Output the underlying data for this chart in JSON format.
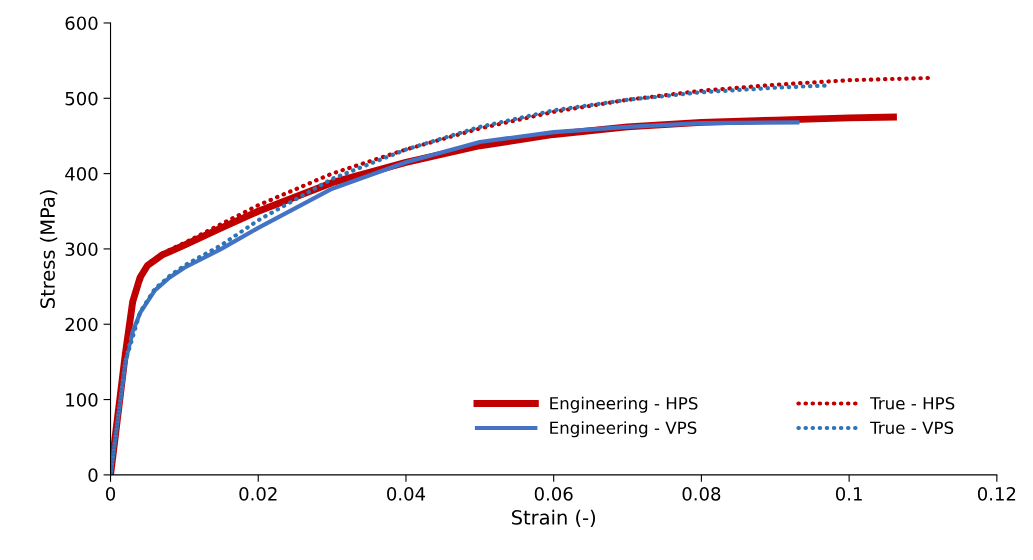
{
  "chart_data": {
    "type": "line",
    "xlabel": "Strain (-)",
    "ylabel": "Stress (MPa)",
    "xlim": [
      0,
      0.12
    ],
    "xticks": [
      0,
      0.02,
      0.04,
      0.06,
      0.08,
      0.1,
      0.12
    ],
    "ylim": [
      0,
      600
    ],
    "yticks": [
      0,
      100,
      200,
      300,
      400,
      500,
      600
    ],
    "grid": false,
    "legend": "bottom right",
    "marker": "none",
    "series": [
      {
        "name": "Engineering - HPS",
        "color": "#c00000",
        "line_style": "solid",
        "x": [
          0,
          0.002,
          0.003,
          0.004,
          0.005,
          0.007,
          0.01,
          0.015,
          0.02,
          0.03,
          0.04,
          0.05,
          0.06,
          0.07,
          0.08,
          0.09,
          0.1,
          0.106
        ],
        "values": [
          0,
          160,
          230,
          262,
          278,
          292,
          305,
          328,
          350,
          388,
          415,
          437,
          452,
          462,
          468,
          471,
          474,
          475
        ]
      },
      {
        "name": "Engineering - VPS",
        "color": "#4472c4",
        "line_style": "solid",
        "x": [
          0,
          0.002,
          0.003,
          0.004,
          0.006,
          0.008,
          0.01,
          0.015,
          0.02,
          0.03,
          0.04,
          0.05,
          0.06,
          0.07,
          0.08,
          0.093
        ],
        "values": [
          0,
          150,
          190,
          215,
          245,
          262,
          275,
          300,
          328,
          380,
          415,
          442,
          455,
          462,
          467,
          468
        ]
      },
      {
        "name": "True - HPS",
        "color": "#c00000",
        "line_style": "dotted",
        "x": [
          0,
          0.002,
          0.003,
          0.005,
          0.007,
          0.01,
          0.015,
          0.02,
          0.03,
          0.04,
          0.05,
          0.06,
          0.07,
          0.08,
          0.09,
          0.1,
          0.111
        ],
        "values": [
          0,
          160,
          232,
          280,
          294,
          308,
          333,
          358,
          400,
          432,
          460,
          482,
          498,
          510,
          518,
          524,
          527
        ]
      },
      {
        "name": "True - VPS",
        "color": "#2e75b6",
        "line_style": "dotted",
        "x": [
          0,
          0.002,
          0.004,
          0.006,
          0.008,
          0.01,
          0.015,
          0.02,
          0.03,
          0.04,
          0.05,
          0.06,
          0.07,
          0.08,
          0.09,
          0.097
        ],
        "values": [
          0,
          150,
          216,
          247,
          264,
          278,
          305,
          338,
          393,
          432,
          462,
          484,
          498,
          508,
          514,
          517
        ]
      }
    ]
  }
}
